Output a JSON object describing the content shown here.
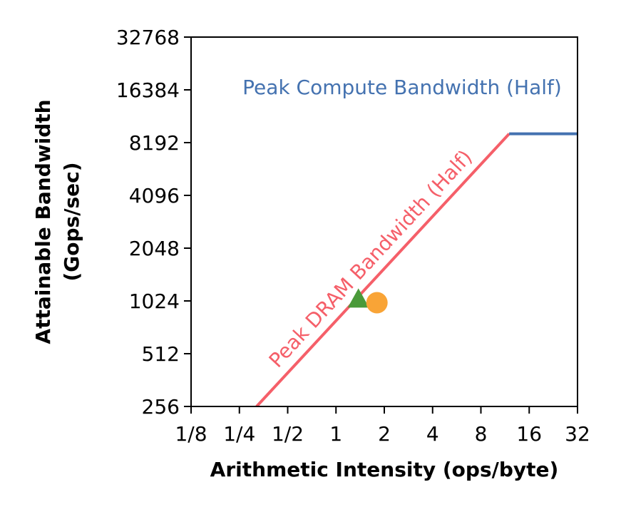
{
  "chart_data": {
    "type": "line",
    "title": "",
    "xlabel": "Arithmetic Intensity (ops/byte)",
    "ylabel_lines": [
      "Attainable Bandwidth",
      "(Gops/sec)"
    ],
    "x_scale": "log2",
    "y_scale": "log2",
    "xlim": [
      0.125,
      32
    ],
    "ylim": [
      256,
      32768
    ],
    "x_ticks": [
      {
        "value": 0.125,
        "label": "1/8"
      },
      {
        "value": 0.25,
        "label": "1/4"
      },
      {
        "value": 0.5,
        "label": "1/2"
      },
      {
        "value": 1,
        "label": "1"
      },
      {
        "value": 2,
        "label": "2"
      },
      {
        "value": 4,
        "label": "4"
      },
      {
        "value": 8,
        "label": "8"
      },
      {
        "value": 16,
        "label": "16"
      },
      {
        "value": 32,
        "label": "32"
      }
    ],
    "y_ticks": [
      {
        "value": 256,
        "label": "256"
      },
      {
        "value": 512,
        "label": "512"
      },
      {
        "value": 1024,
        "label": "1024"
      },
      {
        "value": 2048,
        "label": "2048"
      },
      {
        "value": 4096,
        "label": "4096"
      },
      {
        "value": 8192,
        "label": "8192"
      },
      {
        "value": 16384,
        "label": "16384"
      },
      {
        "value": 32768,
        "label": "32768"
      }
    ],
    "grid": false,
    "series": [
      {
        "role": "dram-roof",
        "color": "#f55f69",
        "points": [
          [
            0.32,
            256
          ],
          [
            12,
            9200
          ]
        ]
      },
      {
        "role": "compute-roof",
        "color": "#4472b0",
        "points": [
          [
            12,
            9200
          ],
          [
            32,
            9200
          ]
        ]
      }
    ],
    "points": [
      {
        "role": "triangle-point",
        "marker": "triangle",
        "color": "#4a9a3a",
        "x": 1.38,
        "y": 1050
      },
      {
        "role": "circle-point",
        "marker": "circle",
        "color": "#f9a436",
        "x": 1.8,
        "y": 1000
      }
    ],
    "annotations": [
      {
        "role": "compute-label",
        "text": "Peak Compute Bandwidth (Half)",
        "color": "#4472b0"
      },
      {
        "role": "dram-label",
        "text": "Peak DRAM Bandwidth (Half)",
        "color": "#f55f69"
      }
    ]
  }
}
